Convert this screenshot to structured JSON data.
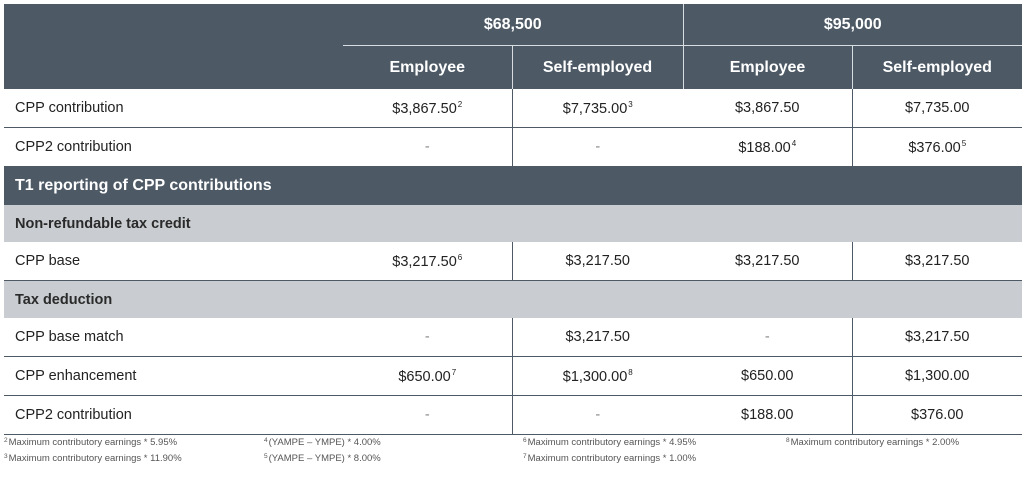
{
  "header": {
    "amount_1": "$68,500",
    "amount_2": "$95,000",
    "employee": "Employee",
    "self_employed": "Self-employed"
  },
  "rows": [
    {
      "label": "CPP contribution",
      "cells": [
        {
          "v": "$3,867.50",
          "s": "2"
        },
        {
          "v": "$7,735.00",
          "s": "3"
        },
        {
          "v": "$3,867.50",
          "s": ""
        },
        {
          "v": "$7,735.00",
          "s": ""
        }
      ]
    },
    {
      "label": "CPP2 contribution",
      "cells": [
        {
          "v": "-",
          "s": ""
        },
        {
          "v": "-",
          "s": ""
        },
        {
          "v": "$188.00",
          "s": "4"
        },
        {
          "v": "$376.00",
          "s": "5"
        }
      ]
    }
  ],
  "section_title": "T1 reporting of CPP contributions",
  "sub1": {
    "title": "Non-refundable tax credit",
    "rows": [
      {
        "label": "CPP base",
        "cells": [
          {
            "v": "$3,217.50",
            "s": "6"
          },
          {
            "v": "$3,217.50",
            "s": ""
          },
          {
            "v": "$3,217.50",
            "s": ""
          },
          {
            "v": "$3,217.50",
            "s": ""
          }
        ]
      }
    ]
  },
  "sub2": {
    "title": "Tax deduction",
    "rows": [
      {
        "label": "CPP base match",
        "cells": [
          {
            "v": "-",
            "s": ""
          },
          {
            "v": "$3,217.50",
            "s": ""
          },
          {
            "v": "-",
            "s": ""
          },
          {
            "v": "$3,217.50",
            "s": ""
          }
        ]
      },
      {
        "label": "CPP enhancement",
        "cells": [
          {
            "v": "$650.00",
            "s": "7"
          },
          {
            "v": "$1,300.00",
            "s": "8"
          },
          {
            "v": "$650.00",
            "s": ""
          },
          {
            "v": "$1,300.00",
            "s": ""
          }
        ]
      },
      {
        "label": "CPP2 contribution",
        "cells": [
          {
            "v": "-",
            "s": ""
          },
          {
            "v": "-",
            "s": ""
          },
          {
            "v": "$188.00",
            "s": ""
          },
          {
            "v": "$376.00",
            "s": ""
          }
        ]
      }
    ]
  },
  "footnotes": {
    "col1": [
      {
        "n": "2",
        "t": "Maximum contributory earnings * 5.95%"
      },
      {
        "n": "3",
        "t": "Maximum contributory earnings * 11.90%"
      }
    ],
    "col2": [
      {
        "n": "4",
        "t": "(YAMPE – YMPE) * 4.00%"
      },
      {
        "n": "5",
        "t": "(YAMPE – YMPE) * 8.00%"
      }
    ],
    "col3": [
      {
        "n": "6",
        "t": "Maximum contributory earnings * 4.95%"
      },
      {
        "n": "7",
        "t": "Maximum contributory earnings * 1.00%"
      }
    ],
    "col4": [
      {
        "n": "8",
        "t": "Maximum contributory earnings * 2.00%"
      }
    ]
  }
}
